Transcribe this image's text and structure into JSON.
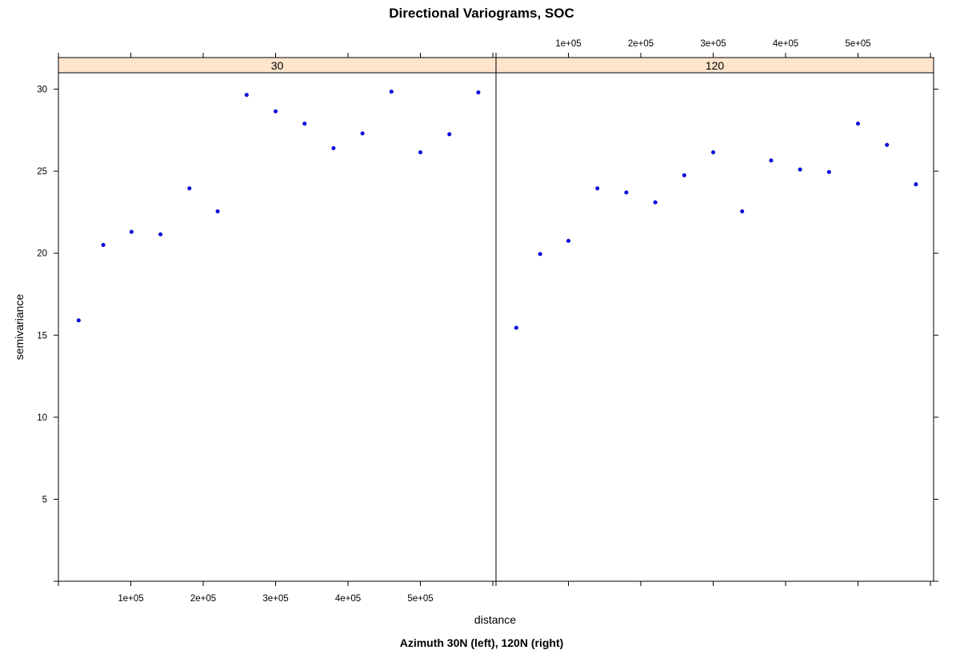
{
  "chart_data": {
    "type": "scatter",
    "title": "Directional Variograms, SOC",
    "subtitle": "Azimuth 30N (left), 120N (right)",
    "xlabel": "distance",
    "ylabel": "semivariance",
    "xlim": [
      -100000,
      1100000
    ],
    "ylim": [
      0,
      31
    ],
    "panels": [
      {
        "strip": "30",
        "x_tick_values": [
          100000,
          200000,
          300000,
          400000,
          500000
        ],
        "x_tick_labels": [
          "1e+05",
          "2e+05",
          "3e+05",
          "4e+05",
          "5e+05"
        ],
        "y_tick_values": [
          5,
          10,
          15,
          20,
          25,
          30
        ],
        "y_tick_labels": [
          "5",
          "10",
          "15",
          "20",
          "25",
          "30"
        ],
        "points": [
          {
            "x": 28000,
            "y": 15.9
          },
          {
            "x": 62000,
            "y": 20.5
          },
          {
            "x": 101000,
            "y": 21.3
          },
          {
            "x": 141000,
            "y": 21.15
          },
          {
            "x": 181000,
            "y": 23.95
          },
          {
            "x": 220000,
            "y": 22.55
          },
          {
            "x": 260000,
            "y": 29.65
          },
          {
            "x": 300000,
            "y": 28.65
          },
          {
            "x": 340000,
            "y": 27.9
          },
          {
            "x": 380000,
            "y": 26.4
          },
          {
            "x": 420000,
            "y": 27.3
          },
          {
            "x": 460000,
            "y": 29.85
          },
          {
            "x": 500000,
            "y": 26.15
          },
          {
            "x": 540000,
            "y": 27.25
          },
          {
            "x": 580000,
            "y": 29.8
          }
        ]
      },
      {
        "strip": "120",
        "x_tick_values": [
          100000,
          200000,
          300000,
          400000,
          500000
        ],
        "x_tick_labels": [
          "1e+05",
          "2e+05",
          "3e+05",
          "4e+05",
          "5e+05"
        ],
        "y_tick_values": [
          5,
          10,
          15,
          20,
          25,
          30
        ],
        "y_tick_labels": [
          "5",
          "10",
          "15",
          "20",
          "25",
          "30"
        ],
        "points": [
          {
            "x": 28000,
            "y": 15.45
          },
          {
            "x": 61000,
            "y": 19.95
          },
          {
            "x": 100000,
            "y": 20.75
          },
          {
            "x": 140000,
            "y": 23.95
          },
          {
            "x": 180000,
            "y": 23.7
          },
          {
            "x": 220000,
            "y": 23.1
          },
          {
            "x": 260000,
            "y": 24.75
          },
          {
            "x": 300000,
            "y": 26.15
          },
          {
            "x": 340000,
            "y": 22.55
          },
          {
            "x": 380000,
            "y": 25.65
          },
          {
            "x": 420000,
            "y": 25.1
          },
          {
            "x": 460000,
            "y": 24.95
          },
          {
            "x": 500000,
            "y": 27.9
          },
          {
            "x": 540000,
            "y": 26.6
          },
          {
            "x": 580000,
            "y": 24.2
          }
        ]
      }
    ],
    "colors": {
      "points": "#0000ff",
      "strip": "#ffe5cc"
    },
    "grid": false,
    "legend": "none"
  }
}
